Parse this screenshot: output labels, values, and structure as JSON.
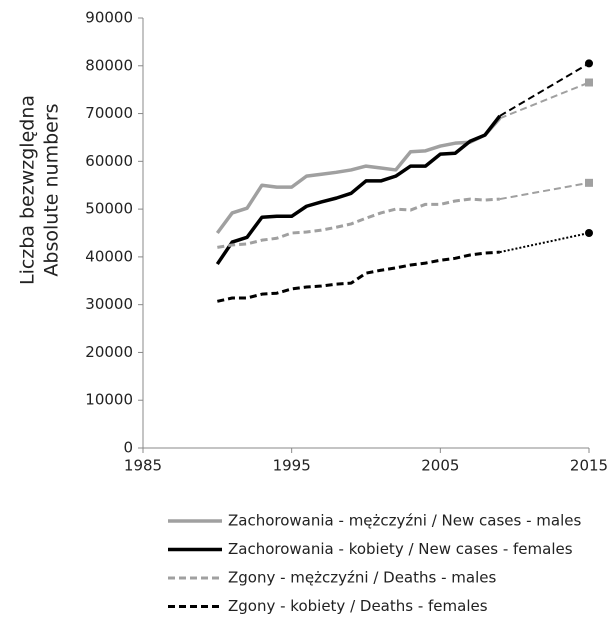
{
  "chart_data": {
    "type": "line",
    "y_label": [
      "Liczba bezwzględna",
      "Absolute numbers"
    ],
    "x": [
      1990,
      1991,
      1992,
      1993,
      1994,
      1995,
      1996,
      1997,
      1998,
      1999,
      2000,
      2001,
      2002,
      2003,
      2004,
      2005,
      2006,
      2007,
      2008,
      2009
    ],
    "projection_x": 2015,
    "xlim": [
      1985,
      2015
    ],
    "xticks": [
      1985,
      1995,
      2005,
      2015
    ],
    "ylim": [
      0,
      90000
    ],
    "yticks": [
      0,
      10000,
      20000,
      30000,
      40000,
      50000,
      60000,
      70000,
      80000,
      90000
    ],
    "grid": false,
    "legend": "bottom",
    "series": [
      {
        "name": "Zachorowania - mężczyźni / New cases - males",
        "color": "#a0a0a0",
        "style": "solid",
        "projection_style": "dashed",
        "marker": "square",
        "values": [
          45000,
          49200,
          50200,
          55000,
          54600,
          54600,
          56900,
          57300,
          57700,
          58200,
          59000,
          58600,
          58200,
          62000,
          62200,
          63200,
          63800,
          64000,
          65500,
          69000
        ],
        "projection": 76500
      },
      {
        "name": "Zachorowania - kobiety / New cases - females",
        "color": "#000000",
        "style": "solid",
        "projection_style": "dashed",
        "marker": "circle",
        "values": [
          38500,
          43100,
          44100,
          48300,
          48500,
          48500,
          50600,
          51500,
          52300,
          53300,
          55900,
          55900,
          56900,
          59000,
          59000,
          61500,
          61700,
          64200,
          65500,
          69500
        ],
        "projection": 80500
      },
      {
        "name": "Zgony - mężczyźni / Deaths - males",
        "color": "#a0a0a0",
        "style": "dashed",
        "projection_style": "dashed",
        "marker": "square",
        "values": [
          42000,
          42500,
          42700,
          43500,
          43900,
          45000,
          45200,
          45600,
          46200,
          46900,
          48100,
          49200,
          50000,
          49800,
          51000,
          51000,
          51700,
          52100,
          51900,
          52100
        ],
        "projection": 55500
      },
      {
        "name": "Zgony - kobiety / Deaths - females",
        "color": "#000000",
        "style": "dashed",
        "projection_style": "dotted",
        "marker": "circle",
        "values": [
          30700,
          31400,
          31400,
          32200,
          32400,
          33300,
          33700,
          33900,
          34300,
          34500,
          36600,
          37200,
          37700,
          38300,
          38700,
          39300,
          39700,
          40400,
          40800,
          41000
        ],
        "projection": 45000
      }
    ]
  }
}
